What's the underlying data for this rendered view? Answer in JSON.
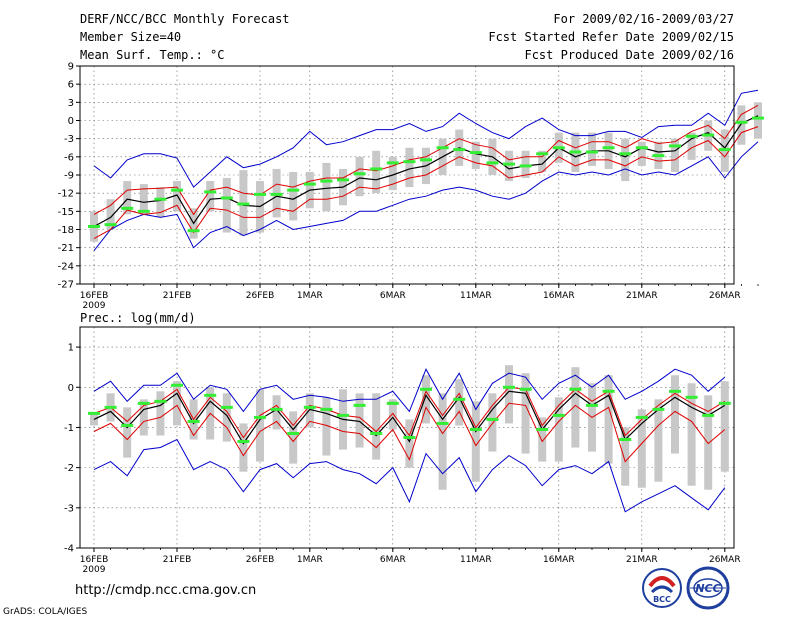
{
  "header": {
    "title": "DERF/NCC/BCC Monthly Forecast",
    "member_size": "Member Size=40",
    "variable": "Mean Surf. Temp.: °C",
    "period": "For 2009/02/16-2009/03/27",
    "start_date": "Fcst Started Refer Date 2009/02/15",
    "produced_date": "Fcst Produced Date 2009/02/16"
  },
  "footer": {
    "url": "http://cmdp.ncc.cma.gov.cn",
    "grads_credit": "GrADS: COLA/IGES",
    "logo_bcc": "BCC",
    "logo_ncc": "NCC"
  },
  "colors": {
    "ensemble_mean": "#000000",
    "spread": "#e00000",
    "extreme": "#0000cc",
    "box": "#c8c8c8",
    "obs": "#33ee33"
  },
  "chart_data": [
    {
      "type": "line",
      "id": "temperature",
      "title": "Mean Surf. Temp.: °C",
      "xlabel": "",
      "ylabel": "°C",
      "ylim": [
        -27,
        9
      ],
      "yticks": [
        "9",
        "6",
        "3",
        "0",
        "-3",
        "-6",
        "-9",
        "-12",
        "-15",
        "-18",
        "-21",
        "-24",
        "-27"
      ],
      "ytick_values": [
        9,
        6,
        3,
        0,
        -3,
        -6,
        -9,
        -12,
        -15,
        -18,
        -21,
        -24,
        -27
      ],
      "xtick_labels": [
        "16FEB",
        "21FEB",
        "26FEB",
        "1MAR",
        "6MAR",
        "11MAR",
        "16MAR",
        "21MAR",
        "26MAR"
      ],
      "xtick_days": [
        0,
        5,
        10,
        13,
        18,
        23,
        28,
        33,
        38
      ],
      "year_label": "2009",
      "series": [
        {
          "name": "ensemble mean",
          "values": [
            -17.5,
            -16,
            -13,
            -13.5,
            -13.2,
            -12.3,
            -17,
            -13,
            -12.8,
            -14,
            -14.2,
            -12.5,
            -13,
            -11.5,
            -11.2,
            -11,
            -9.5,
            -9.8,
            -9,
            -8,
            -7.5,
            -6,
            -4.5,
            -5.5,
            -6,
            -8,
            -7.5,
            -7.2,
            -4.5,
            -6,
            -5,
            -5,
            -6,
            -4.5,
            -5.2,
            -5,
            -3,
            -2,
            -4.5,
            -0.5,
            0.8
          ]
        },
        {
          "name": "upper spread",
          "values": [
            -15.5,
            -14,
            -11.5,
            -11.3,
            -11.2,
            -11,
            -15.5,
            -11.5,
            -11,
            -12,
            -12.3,
            -10.5,
            -11,
            -10,
            -9.5,
            -9.5,
            -8,
            -8.3,
            -7.5,
            -6.5,
            -6,
            -4.5,
            -3,
            -4,
            -4.5,
            -6.5,
            -6,
            -6,
            -3.3,
            -4.5,
            -3.5,
            -3.5,
            -4.5,
            -3,
            -3.8,
            -3.5,
            -1.8,
            -0.8,
            -3,
            1,
            2.5
          ]
        },
        {
          "name": "lower spread",
          "values": [
            -19.5,
            -18,
            -14.8,
            -15.5,
            -15.2,
            -14,
            -18.5,
            -14.5,
            -14.8,
            -16,
            -16,
            -14.5,
            -15,
            -13,
            -13,
            -12.5,
            -11,
            -11.3,
            -10.5,
            -9.5,
            -9,
            -7.5,
            -6,
            -7,
            -7.5,
            -9.5,
            -9,
            -8.5,
            -6,
            -7.5,
            -6.5,
            -6.5,
            -7.5,
            -6,
            -6.7,
            -6.5,
            -4.5,
            -3.3,
            -6,
            -2,
            -1
          ]
        },
        {
          "name": "maximum",
          "values": [
            -7.5,
            -9.5,
            -6.5,
            -5.5,
            -5.5,
            -6.2,
            -11,
            -8.5,
            -6,
            -7.8,
            -7.2,
            -6,
            -4.5,
            -1.8,
            -4,
            -3.5,
            -2.5,
            -1.5,
            -1.5,
            -0.5,
            -1.8,
            -1,
            1.2,
            -0.5,
            -2,
            -3,
            -1,
            0.4,
            -1.5,
            -2.5,
            -2.5,
            -1.8,
            -1.8,
            -2.8,
            -1,
            -0.8,
            -0.8,
            1.2,
            -0.8,
            4.5,
            5
          ]
        },
        {
          "name": "minimum",
          "values": [
            -21.5,
            -18,
            -16.5,
            -15.5,
            -16,
            -15.5,
            -21,
            -18.5,
            -17.5,
            -19,
            -18,
            -16.5,
            -18,
            -17.5,
            -17,
            -16.5,
            -15,
            -15,
            -14,
            -13,
            -12.5,
            -11.5,
            -11,
            -11.5,
            -12.5,
            -13,
            -12,
            -10,
            -8.5,
            -9,
            -8.5,
            -9,
            -8,
            -9,
            -8.5,
            -9,
            -7.5,
            -6,
            -9.5,
            -6,
            -3.5
          ]
        },
        {
          "name": "box top",
          "values": [
            -15,
            -13,
            -10,
            -10.5,
            -11,
            -10,
            -14.5,
            -10,
            -9.5,
            -8.2,
            -10,
            -8,
            -8.5,
            -8.5,
            -7,
            -8,
            -6,
            -5,
            -6,
            -4.5,
            -4.5,
            -3,
            -1.5,
            -3.5,
            -3,
            -5,
            -5,
            -5,
            -2,
            -2,
            -2,
            -2,
            -3,
            -3.5,
            -3.5,
            -3,
            -2,
            0,
            -1.5,
            2.5,
            3
          ]
        },
        {
          "name": "box bottom",
          "values": [
            -20,
            -18,
            -15.5,
            -15.5,
            -16,
            -15,
            -19.5,
            -15,
            -18.5,
            -19,
            -18.5,
            -16,
            -16.5,
            -14.5,
            -15,
            -14,
            -12.5,
            -12,
            -11.5,
            -11,
            -10.5,
            -9,
            -7.5,
            -8,
            -9,
            -10,
            -9.5,
            -8.5,
            -7,
            -8.5,
            -7.5,
            -8,
            -10,
            -7.5,
            -8,
            -8.5,
            -6.5,
            -5,
            -8.5,
            -4,
            -3
          ]
        },
        {
          "name": "observed",
          "values": [
            -17.5,
            -17.2,
            -14.5,
            -15,
            -13,
            -11.5,
            -18.2,
            -11.8,
            -12.8,
            -13.8,
            -12.2,
            -12.2,
            -11.5,
            -10.5,
            -10,
            -9.8,
            -8.8,
            -8,
            -7,
            -6.8,
            -6.5,
            -4.5,
            -4.8,
            -5.3,
            -7,
            -7.2,
            -7.5,
            -5.5,
            -4.5,
            -5.2,
            -5.2,
            -4.5,
            -5.5,
            -4.5,
            -5.8,
            -4.2,
            -2.6,
            -2.4,
            -4.8,
            -0.3,
            0.4
          ]
        }
      ]
    },
    {
      "type": "line",
      "id": "precipitation",
      "title": "Prec.: log(mm/d)",
      "xlabel": "",
      "ylabel": "log(mm/d)",
      "ylim": [
        -4,
        1.5
      ],
      "yticks": [
        "1",
        "0",
        "-1",
        "-2",
        "-3",
        "-4"
      ],
      "ytick_values": [
        1,
        0,
        -1,
        -2,
        -3,
        -4
      ],
      "xtick_labels": [
        "16FEB",
        "21FEB",
        "26FEB",
        "1MAR",
        "6MAR",
        "11MAR",
        "16MAR",
        "21MAR",
        "26MAR"
      ],
      "xtick_days": [
        0,
        5,
        10,
        13,
        18,
        23,
        28,
        33,
        38
      ],
      "year_label": "2009",
      "series": [
        {
          "name": "ensemble mean",
          "values": [
            -0.8,
            -0.6,
            -1,
            -0.55,
            -0.45,
            -0.15,
            -0.9,
            -0.35,
            -0.7,
            -1.4,
            -0.8,
            -0.55,
            -1.05,
            -0.55,
            -0.65,
            -0.8,
            -0.85,
            -1.2,
            -0.75,
            -1.35,
            -0.2,
            -0.8,
            -0.25,
            -1.1,
            -0.55,
            -0.1,
            -0.15,
            -1.05,
            -0.55,
            -0.15,
            -0.45,
            -0.2,
            -1.3,
            -0.9,
            -0.55,
            -0.25,
            -0.5,
            -0.7,
            -0.45
          ]
        },
        {
          "name": "upper spread",
          "values": [
            -0.65,
            -0.5,
            -0.85,
            -0.45,
            -0.35,
            -0.05,
            -0.8,
            -0.25,
            -0.6,
            -1.25,
            -0.7,
            -0.45,
            -0.95,
            -0.45,
            -0.55,
            -0.7,
            -0.75,
            -1.1,
            -0.65,
            -1.2,
            -0.1,
            -0.7,
            -0.15,
            -1,
            -0.45,
            0,
            -0.05,
            -0.95,
            -0.45,
            -0.05,
            -0.35,
            -0.1,
            -1.2,
            -0.8,
            -0.45,
            -0.15,
            -0.4,
            -0.6,
            -0.35
          ]
        },
        {
          "name": "lower spread",
          "values": [
            -1.1,
            -0.9,
            -1.3,
            -0.85,
            -0.75,
            -0.45,
            -1.2,
            -0.65,
            -1,
            -1.7,
            -1.1,
            -0.85,
            -1.35,
            -0.85,
            -0.95,
            -1.1,
            -1.15,
            -1.5,
            -1.05,
            -1.8,
            -0.5,
            -1.15,
            -0.6,
            -1.45,
            -0.9,
            -0.4,
            -0.45,
            -1.35,
            -0.85,
            -0.45,
            -0.75,
            -0.5,
            -1.85,
            -1.4,
            -0.95,
            -0.6,
            -0.85,
            -1.4,
            -1.05
          ]
        },
        {
          "name": "maximum",
          "values": [
            -0.1,
            0.15,
            -0.35,
            0.05,
            0.05,
            0.35,
            -0.3,
            0.05,
            -0.05,
            -0.6,
            -0.05,
            0.05,
            -0.3,
            -0.2,
            -0.25,
            -0.35,
            -0.3,
            -0.3,
            -0.1,
            -0.6,
            0.45,
            -0.3,
            0.35,
            -0.55,
            0.1,
            0.35,
            0.25,
            -0.3,
            0.1,
            0.3,
            0,
            0.3,
            -0.3,
            -0.1,
            0.15,
            0.45,
            0.3,
            -0.1,
            0.25
          ]
        },
        {
          "name": "minimum",
          "values": [
            -2.05,
            -1.85,
            -2.2,
            -1.55,
            -1.5,
            -1.3,
            -2.05,
            -1.85,
            -2.05,
            -2.6,
            -2.05,
            -1.9,
            -2.25,
            -1.9,
            -1.85,
            -2.05,
            -2.15,
            -2.4,
            -2,
            -2.85,
            -1.65,
            -2.15,
            -1.75,
            -2.6,
            -2.05,
            -1.7,
            -1.95,
            -2.45,
            -2.05,
            -1.95,
            -2.15,
            -1.85,
            -3.1,
            -2.85,
            -2.65,
            -2.45,
            -2.75,
            -3.05,
            -2.5
          ]
        },
        {
          "name": "box top",
          "values": [
            -0.65,
            -0.15,
            -0.5,
            -0.3,
            -0.1,
            0.15,
            -0.3,
            0,
            -0.15,
            -0.9,
            -0.05,
            -0.2,
            -0.6,
            -0.15,
            -0.25,
            -0.05,
            -0.15,
            -0.15,
            -0.3,
            -0.8,
            0.3,
            -0.15,
            0.2,
            -0.35,
            -0.15,
            0.55,
            0.35,
            -0.75,
            -0.25,
            0.5,
            0.1,
            0.3,
            -1,
            -0.55,
            -0.3,
            0.3,
            0.1,
            -0.2,
            0.15
          ]
        },
        {
          "name": "box bottom",
          "values": [
            -0.95,
            -0.85,
            -1.75,
            -1.2,
            -1.2,
            -0.95,
            -1.3,
            -1.3,
            -1.35,
            -2.1,
            -1.85,
            -1.05,
            -1.9,
            -1,
            -1.7,
            -1.55,
            -1.5,
            -1.8,
            -1.05,
            -2,
            -0.9,
            -2.55,
            -0.95,
            -2.35,
            -1.6,
            -0.9,
            -1.65,
            -1.85,
            -1.85,
            -1.5,
            -1.6,
            -1.9,
            -2.45,
            -2.5,
            -2.35,
            -1.65,
            -2.45,
            -2.55,
            -2.1
          ]
        },
        {
          "name": "observed",
          "values": [
            -0.65,
            -0.5,
            -0.95,
            -0.4,
            -0.35,
            0.05,
            -0.85,
            -0.2,
            -0.5,
            -1.35,
            -0.75,
            -0.55,
            -1.15,
            -0.5,
            -0.55,
            -0.7,
            -0.45,
            -1.15,
            -0.4,
            -1.25,
            -0.05,
            -0.9,
            -0.3,
            -1.05,
            -0.8,
            0,
            -0.05,
            -1.05,
            -0.7,
            -0.05,
            -0.45,
            -0.1,
            -1.3,
            -0.75,
            -0.55,
            -0.1,
            -0.25,
            -0.7,
            -0.4
          ]
        }
      ]
    }
  ]
}
